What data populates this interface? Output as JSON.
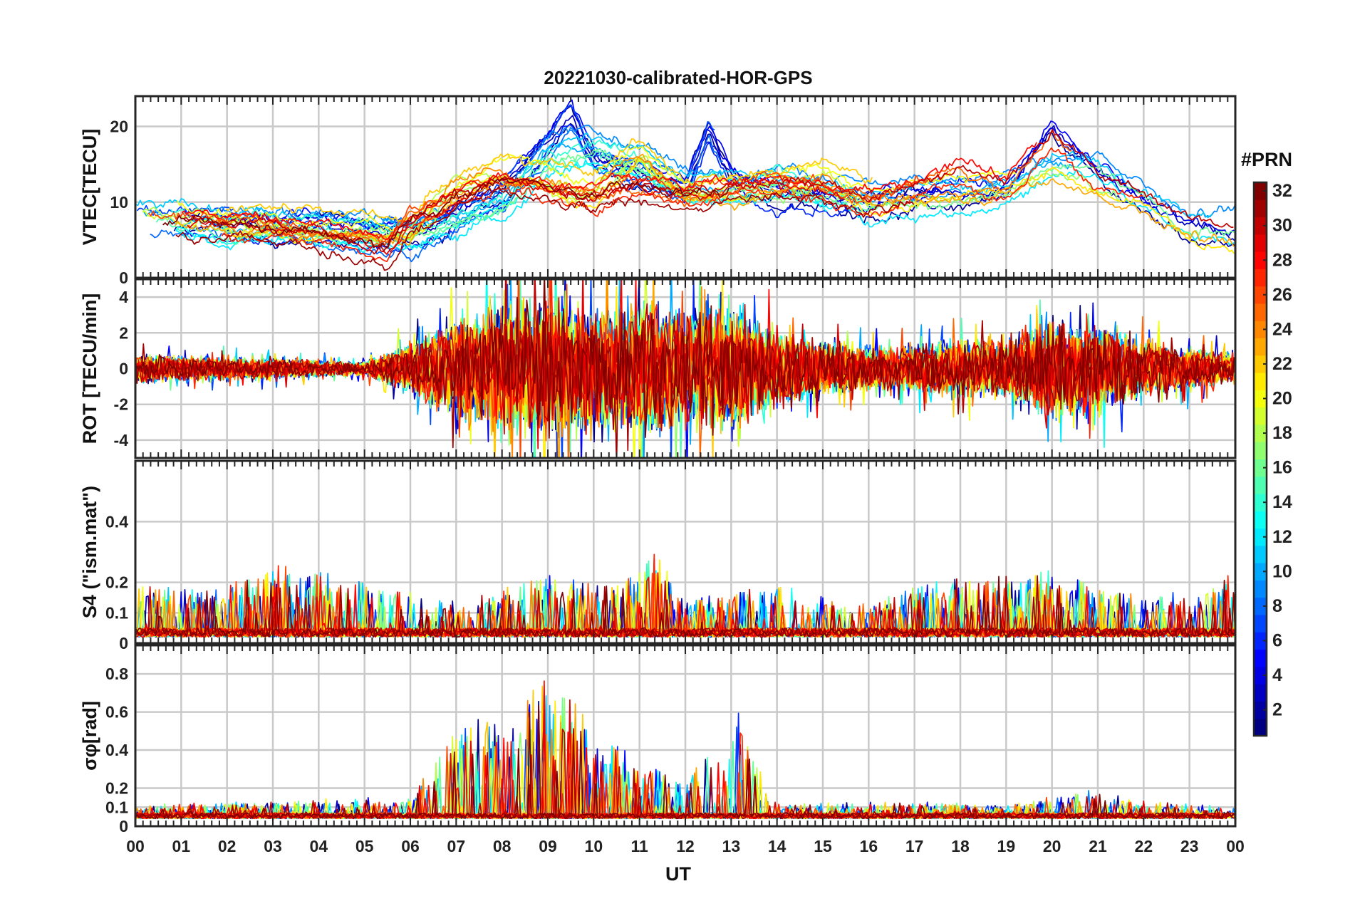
{
  "chart_data": {
    "type": "line",
    "title": "20221030-calibrated-HOR-GPS",
    "xlabel": "UT",
    "x_tick_labels": [
      "00",
      "01",
      "02",
      "03",
      "04",
      "05",
      "06",
      "07",
      "08",
      "09",
      "10",
      "11",
      "12",
      "13",
      "14",
      "15",
      "16",
      "17",
      "18",
      "19",
      "20",
      "21",
      "22",
      "23",
      "00"
    ],
    "x_range_hours": [
      0,
      24
    ],
    "grid": true,
    "legend": "colorbar-right",
    "colormap": "jet",
    "colorbar": {
      "title": "#PRN",
      "range": [
        1,
        32
      ],
      "tick_labels": [
        "2",
        "4",
        "6",
        "8",
        "10",
        "12",
        "14",
        "16",
        "18",
        "20",
        "22",
        "24",
        "26",
        "28",
        "30",
        "32"
      ]
    },
    "panels": [
      {
        "ylabel": "VTEC[TECU]",
        "ylim": [
          0,
          24
        ],
        "ytick_labels": [
          "0",
          "10",
          "20"
        ],
        "series_by_prn_group": [
          {
            "group": "PRN 1-8 (blue)",
            "x": [
              0,
              2,
              4,
              6,
              8,
              9,
              9.5,
              10,
              11,
              12,
              12.5,
              13,
              14,
              16,
              18,
              19,
              20,
              21,
              22,
              23,
              24
            ],
            "y": [
              8,
              7,
              7,
              6,
              11,
              18,
              22,
              16,
              14,
              12,
              20,
              14,
              11,
              10,
              11,
              12,
              20,
              14,
              10,
              7,
              6
            ]
          },
          {
            "group": "PRN 9-16 (cyan)",
            "x": [
              0,
              2,
              4,
              6,
              8,
              9,
              10,
              11,
              12,
              13,
              14,
              16,
              18,
              19,
              20,
              21,
              22,
              23,
              24
            ],
            "y": [
              9,
              7,
              7,
              6,
              10,
              16,
              17,
              15,
              12,
              12,
              13,
              10,
              11,
              12,
              15,
              15,
              11,
              7,
              7
            ]
          },
          {
            "group": "PRN 17-24 (yellow/orange)",
            "x": [
              0,
              2,
              4,
              6,
              7,
              8,
              10,
              11,
              12,
              14,
              15,
              16,
              18,
              19,
              20,
              21,
              22,
              23,
              24
            ],
            "y": [
              10,
              8,
              7,
              7,
              13,
              15,
              12,
              17,
              12,
              13,
              14,
              11,
              12,
              13,
              16,
              13,
              11,
              8,
              6
            ]
          },
          {
            "group": "PRN 25-32 (red)",
            "x": [
              0,
              2,
              4,
              5.5,
              6,
              7,
              8,
              10,
              11,
              12,
              14,
              16,
              18,
              19,
              20,
              21,
              22,
              23,
              24
            ],
            "y": [
              8,
              7,
              6,
              4,
              8,
              11,
              13,
              11,
              12,
              11,
              13,
              10,
              14,
              12,
              19,
              13,
              11,
              8,
              6
            ]
          }
        ]
      },
      {
        "ylabel": "ROT [TECU/min]",
        "ylim": [
          -5,
          5
        ],
        "ytick_labels": [
          "-4",
          "-2",
          "0",
          "2",
          "4"
        ],
        "envelope": {
          "x": [
            0,
            5,
            6,
            7,
            8,
            9,
            10,
            11,
            12,
            13,
            14,
            16,
            18,
            19,
            20,
            21,
            22,
            23,
            24
          ],
          "amplitude": [
            1,
            0.5,
            1.8,
            3.5,
            4.5,
            5,
            4,
            5,
            4,
            4.5,
            2.5,
            1.5,
            2,
            2,
            3.5,
            3,
            2,
            1.5,
            1
          ]
        }
      },
      {
        "ylabel": "S4 (\"ism.mat\")",
        "ylim": [
          0,
          0.6
        ],
        "ytick_labels": [
          "0",
          "0.1",
          "0.2",
          "0.4"
        ],
        "envelope": {
          "x": [
            0,
            1.5,
            3,
            5,
            7,
            9,
            10.5,
            11.3,
            12,
            14,
            16,
            17.5,
            19,
            20,
            21,
            22,
            23,
            24
          ],
          "peak": [
            0.2,
            0.18,
            0.26,
            0.21,
            0.13,
            0.24,
            0.2,
            0.31,
            0.14,
            0.2,
            0.12,
            0.23,
            0.22,
            0.24,
            0.2,
            0.15,
            0.18,
            0.25
          ]
        }
      },
      {
        "ylabel": "σφ[rad]",
        "ylim": [
          0,
          0.95
        ],
        "ytick_labels": [
          "0",
          "0.1",
          "0.2",
          "0.4",
          "0.6",
          "0.8"
        ],
        "envelope": {
          "x": [
            0,
            6,
            6.8,
            7.5,
            8,
            9,
            10,
            11,
            12,
            13.2,
            14,
            17,
            19,
            21,
            22,
            24
          ],
          "peak": [
            0.1,
            0.15,
            0.49,
            0.68,
            0.55,
            0.87,
            0.5,
            0.35,
            0.25,
            0.65,
            0.1,
            0.12,
            0.1,
            0.2,
            0.12,
            0.08
          ]
        }
      }
    ]
  }
}
